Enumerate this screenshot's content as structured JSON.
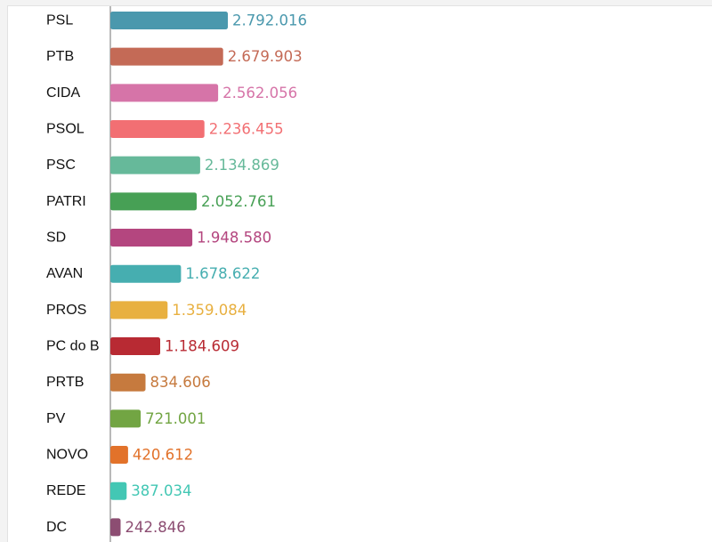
{
  "chart_data": {
    "type": "bar",
    "orientation": "horizontal",
    "categories": [
      "PSL",
      "PTB",
      "CIDA",
      "PSOL",
      "PSC",
      "PATRI",
      "SD",
      "AVAN",
      "PROS",
      "PC do B",
      "PRTB",
      "PV",
      "NOVO",
      "REDE",
      "DC"
    ],
    "values": [
      2792016,
      2679903,
      2562056,
      2236455,
      2134869,
      2052761,
      1948580,
      1678622,
      1359084,
      1184609,
      834606,
      721001,
      420612,
      387034,
      242846
    ],
    "value_labels": [
      "2.792.016",
      "2.679.903",
      "2.562.056",
      "2.236.455",
      "2.134.869",
      "2.052.761",
      "1.948.580",
      "1.678.622",
      "1.359.084",
      "1.184.609",
      "834.606",
      "721.001",
      "420.612",
      "387.034",
      "242.846"
    ],
    "colors": [
      "#4a98ad",
      "#c46a56",
      "#d674a8",
      "#f26f73",
      "#66b99a",
      "#47a055",
      "#b4467f",
      "#46aeb0",
      "#e8b040",
      "#b82a33",
      "#c67a3e",
      "#72a543",
      "#e2722a",
      "#43c7b4",
      "#8c4d72"
    ],
    "xlim": [
      0,
      2792016
    ],
    "title": "",
    "xlabel": "",
    "ylabel": "",
    "grid": false,
    "legend": "none"
  }
}
